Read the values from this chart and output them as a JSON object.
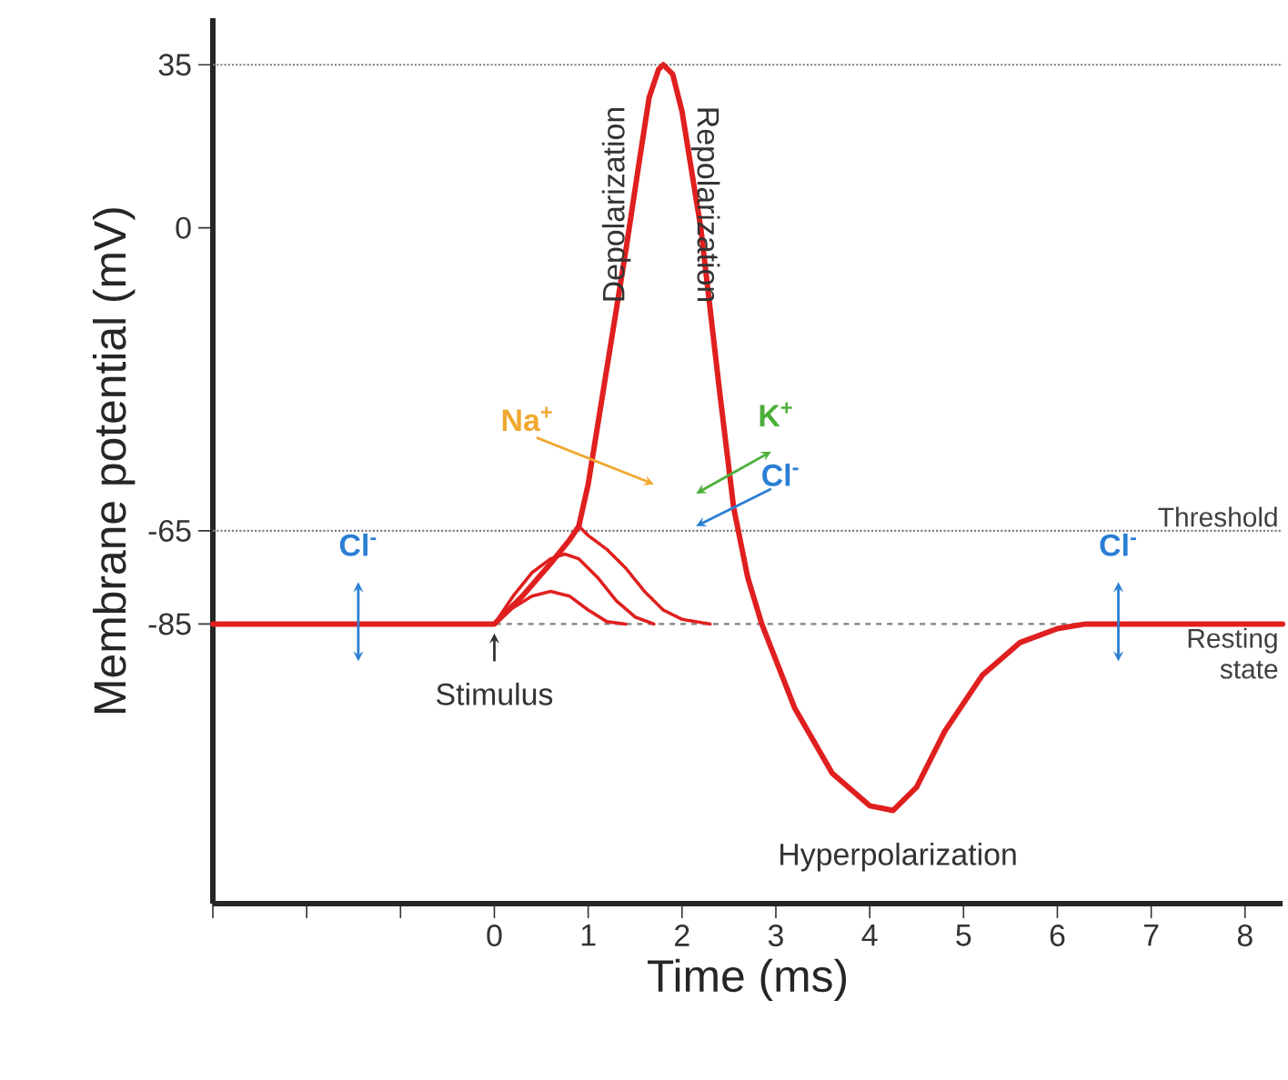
{
  "chart_data": {
    "type": "line",
    "xlabel": "Time (ms)",
    "ylabel": "Membrane potential (mV)",
    "xlim": [
      -3,
      8.4
    ],
    "ylim": [
      -145,
      45
    ],
    "xticks": [
      {
        "value": -3,
        "label": null
      },
      {
        "value": -2,
        "label": null
      },
      {
        "value": -1,
        "label": null
      },
      0,
      1,
      2,
      3,
      4,
      5,
      6,
      7,
      8
    ],
    "yticks": [
      -85,
      -65,
      0,
      35
    ],
    "series": [
      {
        "color": "#e01f1f",
        "line_style": "solid",
        "x": [
          -3,
          0,
          0.3,
          0.6,
          0.8,
          0.9,
          1.0,
          1.2,
          1.4,
          1.55,
          1.65,
          1.75,
          1.8,
          1.9,
          2.0,
          2.2,
          2.4,
          2.55,
          2.7,
          2.85,
          3.2,
          3.6,
          4.0,
          4.25,
          4.5,
          4.8,
          5.2,
          5.6,
          6.0,
          6.3,
          8.4
        ],
        "values": [
          -85,
          -85,
          -79,
          -72,
          -67,
          -64,
          -55,
          -30,
          -5,
          15,
          28,
          34,
          35,
          33,
          25,
          0,
          -35,
          -60,
          -75,
          -85,
          -103,
          -117,
          -124,
          -125,
          -120,
          -108,
          -96,
          -89,
          -86,
          -85,
          -85
        ]
      },
      {
        "color": "#e01f1f",
        "line_style": "solid",
        "x": [
          0,
          0.2,
          0.4,
          0.6,
          0.75,
          0.9,
          1.1,
          1.3,
          1.5,
          1.7
        ],
        "values": [
          -85,
          -79,
          -74,
          -71,
          -70,
          -71,
          -75,
          -80,
          -83.5,
          -85
        ]
      },
      {
        "color": "#e01f1f",
        "line_style": "solid",
        "x": [
          0,
          0.2,
          0.4,
          0.6,
          0.8,
          1.0,
          1.2,
          1.4
        ],
        "values": [
          -85,
          -81.5,
          -79,
          -78,
          -79,
          -82,
          -84.5,
          -85
        ]
      },
      {
        "color": "#e01f1f",
        "line_style": "dotted",
        "x": [
          0.9,
          1.0,
          1.2,
          1.4,
          1.6,
          1.8,
          2.0,
          2.3
        ],
        "values": [
          -64,
          -66,
          -69,
          -73,
          -78,
          -82,
          -84,
          -85
        ]
      }
    ],
    "ref_lines": [
      {
        "axis": "y",
        "value": 35,
        "label": null,
        "color": "#808080",
        "line_style": "dotted"
      },
      {
        "axis": "y",
        "value": -65,
        "label": "Threshold",
        "color": "#808080",
        "line_style": "dotted"
      },
      {
        "axis": "y",
        "value": -85,
        "label": "Resting state",
        "color": "#808080",
        "line_style": "dashed"
      }
    ],
    "annotations": [
      "Depolarization",
      "Repolarization",
      "Na$^{+}$",
      "K$^{+}$",
      "Cl$^{-}$",
      "Cl$^{-}$",
      "Cl$^{-}$",
      "Stimulus",
      "Hyperpolarization"
    ],
    "grid": false
  }
}
